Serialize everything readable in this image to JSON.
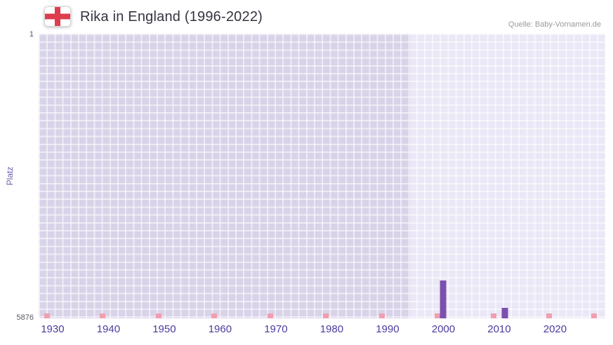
{
  "header": {
    "title": "Rika in England (1996-2022)",
    "source": "Quelle: Baby-Vornamen.de"
  },
  "chart_data": {
    "type": "bar",
    "title": "Rika in England (1996-2022)",
    "xlabel": "",
    "ylabel": "Platz",
    "y_axis": {
      "min": 1,
      "max": 5876,
      "top_label": "1",
      "bottom_label": "5876",
      "inverted": true
    },
    "x_axis": {
      "start_year": 1927.5,
      "end_year": 2029,
      "ticks": [
        1930,
        1940,
        1950,
        1960,
        1970,
        1980,
        1990,
        2000,
        2010,
        2020
      ]
    },
    "series": [
      {
        "name": "Platz",
        "points": [
          {
            "year": 2000,
            "platz": 5090
          },
          {
            "year": 2011,
            "platz": 5655
          }
        ]
      }
    ],
    "highlight_region": {
      "from_year": 1994,
      "to_year": 2029
    },
    "bottom_marks_years": [
      1929,
      1939,
      1949,
      1959,
      1969,
      1979,
      1989,
      1999,
      2009,
      2019,
      2027
    ],
    "grid": true,
    "legend_position": "none",
    "colors": {
      "bar": "#7b51ad",
      "plot_bg": "#d9d3e9",
      "plot_bg_highlight": "#eae7f6",
      "grid_line": "rgba(255,255,255,0.55)",
      "mark": "#f09fb0",
      "tick_label": "#4b3c9f",
      "y_tick_label": "#5a5564",
      "axis_title": "#6a5fab",
      "title_text": "#343440",
      "source_text": "#9a9aa0",
      "flag_red": "#dd3d4d"
    }
  }
}
